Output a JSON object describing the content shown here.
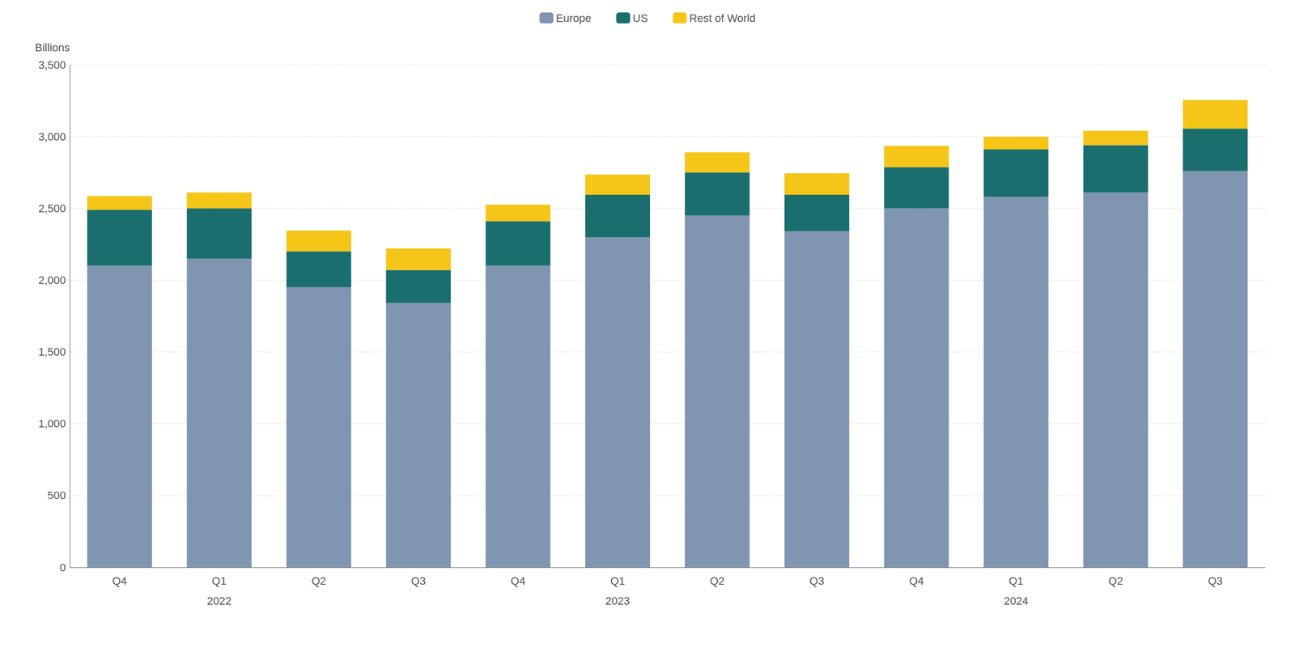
{
  "chart_data": {
    "type": "bar",
    "stacked": true,
    "grid": true,
    "legend": "top",
    "ylabel": "Billions",
    "categories": [
      "Q4",
      "Q1",
      "Q2",
      "Q3",
      "Q4",
      "Q1",
      "Q2",
      "Q3",
      "Q4",
      "Q1",
      "Q2",
      "Q3"
    ],
    "series": [
      {
        "name": "Europe",
        "color": "#7f95b0",
        "values": [
          2100,
          2150,
          1950,
          1840,
          2100,
          2300,
          2450,
          2340,
          2500,
          2580,
          2610,
          2760
        ]
      },
      {
        "name": "US",
        "color": "#1a6e6e",
        "values": [
          390,
          350,
          250,
          230,
          310,
          295,
          300,
          255,
          285,
          330,
          330,
          295
        ]
      },
      {
        "name": "Rest of World",
        "color": "#f5c518",
        "values": [
          95,
          110,
          145,
          150,
          115,
          140,
          140,
          150,
          150,
          90,
          100,
          200
        ]
      }
    ],
    "annotations": [
      {
        "text": "2022",
        "x": 1
      },
      {
        "text": "2023",
        "x": 5
      },
      {
        "text": "2024",
        "x": 9
      }
    ],
    "ylim": [
      0,
      3500
    ],
    "yticks": [
      0,
      500,
      {
        "value": 1000,
        "label": "1,000"
      },
      {
        "value": 1500,
        "label": "1,500"
      },
      {
        "value": 2000,
        "label": "2,000"
      },
      {
        "value": 2500,
        "label": "2,500"
      },
      {
        "value": 3000,
        "label": "3,000"
      },
      {
        "value": 3500,
        "label": "3,500"
      }
    ]
  }
}
